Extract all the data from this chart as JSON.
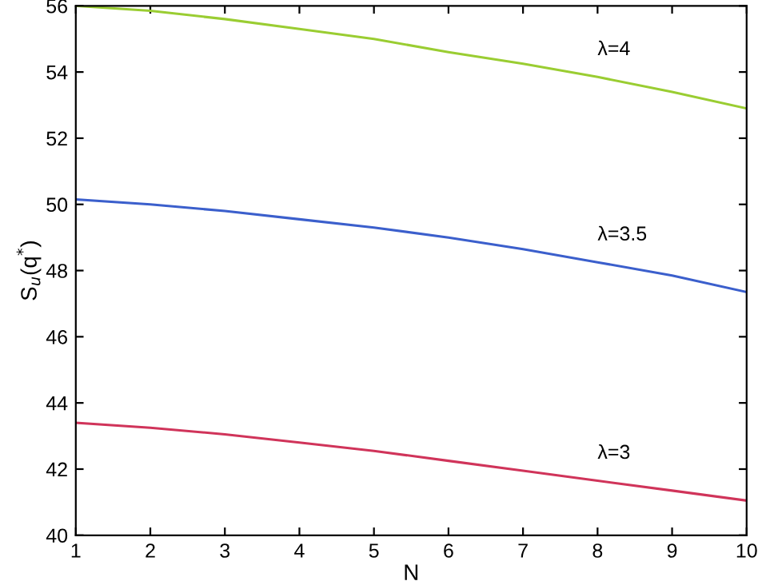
{
  "chart_data": {
    "type": "line",
    "xlabel": "N",
    "ylabel": "S$_{u}$(q$^{*}$)",
    "x": [
      1,
      2,
      3,
      4,
      5,
      6,
      7,
      8,
      9,
      10
    ],
    "series": [
      {
        "name": "λ=4",
        "color": "#9acd32",
        "values": [
          56.0,
          55.85,
          55.6,
          55.3,
          55.0,
          54.6,
          54.25,
          53.85,
          53.4,
          52.9
        ]
      },
      {
        "name": "λ=3.5",
        "color": "#3b5fcc",
        "values": [
          50.15,
          50.0,
          49.8,
          49.55,
          49.3,
          49.0,
          48.65,
          48.25,
          47.85,
          47.35
        ]
      },
      {
        "name": "λ=3",
        "color": "#d0345a",
        "values": [
          43.4,
          43.25,
          43.05,
          42.8,
          42.55,
          42.25,
          41.95,
          41.65,
          41.35,
          41.05
        ]
      }
    ],
    "xlim": [
      1,
      10
    ],
    "ylim": [
      40,
      56
    ],
    "xticks": [
      1,
      2,
      3,
      4,
      5,
      6,
      7,
      8,
      9,
      10
    ],
    "yticks": [
      40,
      42,
      44,
      46,
      48,
      50,
      52,
      54,
      56
    ],
    "grid": false,
    "legend": false,
    "marker": "none",
    "line_style": "solid"
  }
}
